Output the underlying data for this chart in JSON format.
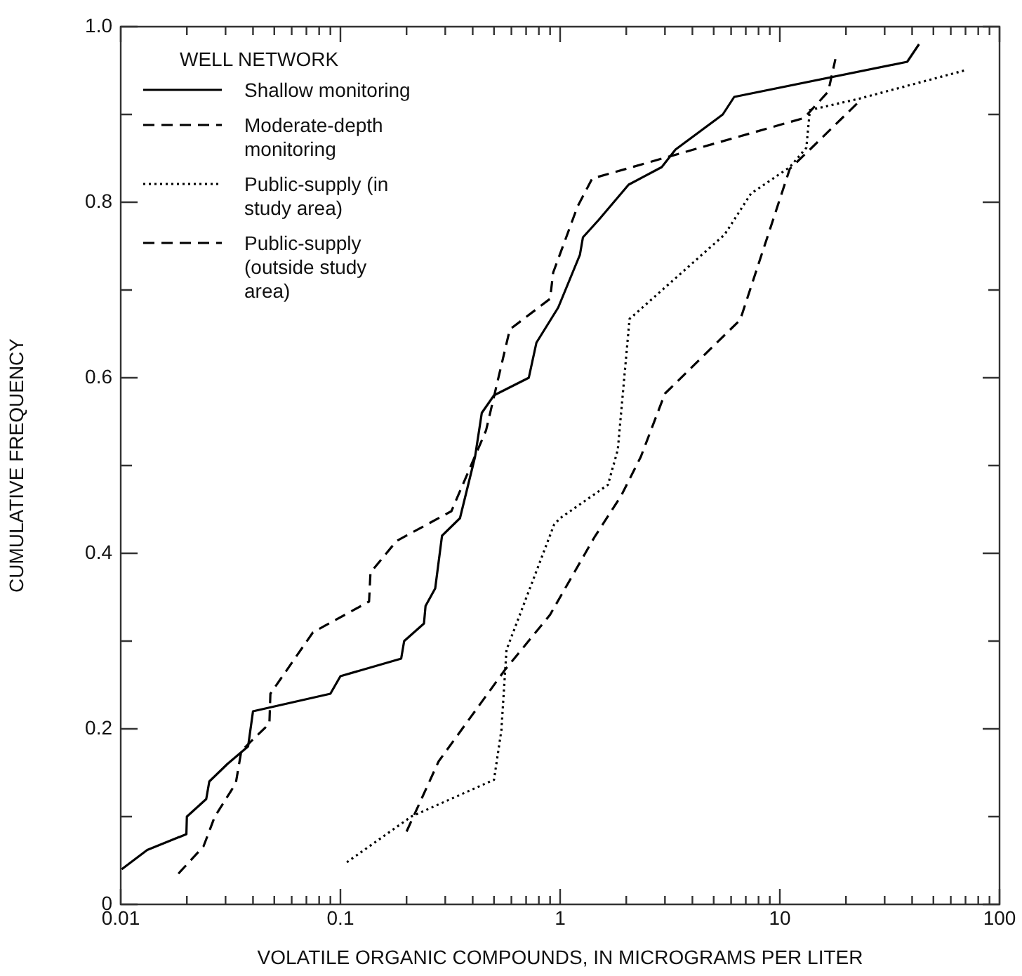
{
  "chart_data": {
    "type": "line",
    "xlabel": "VOLATILE ORGANIC COMPOUNDS, IN MICROGRAMS PER LITER",
    "ylabel": "CUMULATIVE FREQUENCY",
    "legend_title": "WELL NETWORK",
    "legend": "top left",
    "grid": false,
    "log": "x",
    "marker": "none",
    "xlim": [
      0.01,
      100
    ],
    "ylim": [
      0,
      1
    ],
    "xticks": [
      0.01,
      {
        "value": 0.02,
        "label": null
      },
      {
        "value": 0.03,
        "label": null
      },
      {
        "value": 0.04,
        "label": null
      },
      {
        "value": 0.05,
        "label": null
      },
      {
        "value": 0.06,
        "label": null
      },
      {
        "value": 0.07,
        "label": null
      },
      {
        "value": 0.08,
        "label": null
      },
      {
        "value": 0.09,
        "label": null
      },
      0.1,
      {
        "value": 0.2,
        "label": null
      },
      {
        "value": 0.3,
        "label": null
      },
      {
        "value": 0.4,
        "label": null
      },
      {
        "value": 0.5,
        "label": null
      },
      {
        "value": 0.6,
        "label": null
      },
      {
        "value": 0.7,
        "label": null
      },
      {
        "value": 0.8,
        "label": null
      },
      {
        "value": 0.9,
        "label": null
      },
      1,
      {
        "value": 2,
        "label": null
      },
      {
        "value": 3,
        "label": null
      },
      {
        "value": 4,
        "label": null
      },
      {
        "value": 5,
        "label": null
      },
      {
        "value": 6,
        "label": null
      },
      {
        "value": 7,
        "label": null
      },
      {
        "value": 8,
        "label": null
      },
      {
        "value": 9,
        "label": null
      },
      10,
      {
        "value": 20,
        "label": null
      },
      {
        "value": 30,
        "label": null
      },
      {
        "value": 40,
        "label": null
      },
      {
        "value": 50,
        "label": null
      },
      {
        "value": 60,
        "label": null
      },
      {
        "value": 70,
        "label": null
      },
      {
        "value": 80,
        "label": null
      },
      {
        "value": 90,
        "label": null
      },
      100
    ],
    "yticks": [
      0,
      {
        "value": 0.1,
        "label": null
      },
      0.2,
      {
        "value": 0.3,
        "label": null
      },
      0.4,
      {
        "value": 0.5,
        "label": null
      },
      0.6,
      {
        "value": 0.7,
        "label": null
      },
      0.8,
      {
        "value": 0.9,
        "label": null
      },
      {
        "value": 1,
        "label": "1.0"
      }
    ],
    "series": [
      {
        "name": "Shallow monitoring",
        "color": "#000000",
        "line_style": "solid",
        "x": [
          0.0101,
          0.0132,
          0.0199,
          0.02,
          0.0245,
          0.0253,
          0.0306,
          0.038,
          0.04,
          0.09,
          0.1,
          0.189,
          0.195,
          0.24,
          0.244,
          0.27,
          0.29,
          0.35,
          0.41,
          0.44,
          0.5,
          0.72,
          0.78,
          0.98,
          1.23,
          1.27,
          1.5,
          2.05,
          2.9,
          3.35,
          5.5,
          6.2,
          38,
          43
        ],
        "values": [
          0.04,
          0.062,
          0.08,
          0.1,
          0.12,
          0.14,
          0.16,
          0.18,
          0.22,
          0.24,
          0.26,
          0.28,
          0.3,
          0.32,
          0.34,
          0.36,
          0.42,
          0.44,
          0.51,
          0.56,
          0.58,
          0.6,
          0.64,
          0.68,
          0.74,
          0.76,
          0.78,
          0.82,
          0.84,
          0.86,
          0.9,
          0.92,
          0.96,
          0.98
        ]
      },
      {
        "name": "Moderate-depth monitoring",
        "color": "#000000",
        "line_style": "dashed",
        "x": [
          0.0183,
          0.0238,
          0.0268,
          0.0334,
          0.0354,
          0.0475,
          0.048,
          0.075,
          0.135,
          0.137,
          0.18,
          0.32,
          0.46,
          0.59,
          0.9,
          0.93,
          1.2,
          1.4,
          12.9,
          16.6,
          17.9
        ],
        "values": [
          0.035,
          0.066,
          0.1,
          0.138,
          0.175,
          0.206,
          0.24,
          0.31,
          0.345,
          0.378,
          0.414,
          0.448,
          0.54,
          0.655,
          0.69,
          0.72,
          0.795,
          0.827,
          0.896,
          0.926,
          0.963
        ]
      },
      {
        "name": "Public-supply (in study area)",
        "color": "#000000",
        "line_style": "dotted",
        "x": [
          0.107,
          0.21,
          0.5,
          0.54,
          0.57,
          0.94,
          1.0,
          1.65,
          1.83,
          2.07,
          5.6,
          7.4,
          11.1,
          13.2,
          13.7,
          23,
          69
        ],
        "values": [
          0.048,
          0.1,
          0.142,
          0.198,
          0.29,
          0.433,
          0.44,
          0.478,
          0.518,
          0.667,
          0.763,
          0.81,
          0.84,
          0.862,
          0.905,
          0.918,
          0.95
        ]
      },
      {
        "name": "Public-supply (outside study area)",
        "color": "#000000",
        "line_style": "dashed",
        "x": [
          0.2,
          0.28,
          0.56,
          0.9,
          1.43,
          1.9,
          2.33,
          3.0,
          6.6,
          11.1,
          13.7,
          23
        ],
        "values": [
          0.083,
          0.163,
          0.267,
          0.33,
          0.418,
          0.466,
          0.51,
          0.582,
          0.666,
          0.838,
          0.86,
          0.915
        ]
      }
    ]
  }
}
